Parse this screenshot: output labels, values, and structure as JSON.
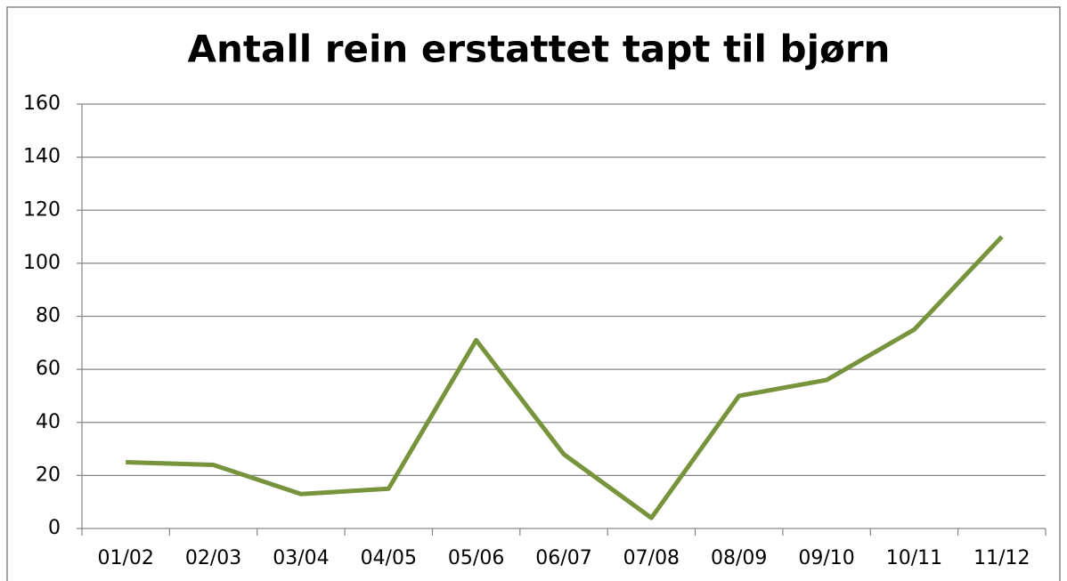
{
  "chart_data": {
    "type": "line",
    "title": "Antall rein erstattet tapt til bjørn",
    "categories": [
      "01/02",
      "02/03",
      "03/04",
      "04/05",
      "05/06",
      "06/07",
      "07/08",
      "08/09",
      "09/10",
      "10/11",
      "11/12"
    ],
    "values": [
      25,
      24,
      13,
      15,
      71,
      28,
      4,
      50,
      56,
      75,
      110
    ],
    "color": "#77933c",
    "ylim": [
      0,
      160
    ],
    "yticks": [
      0,
      20,
      40,
      60,
      80,
      100,
      120,
      140,
      160
    ],
    "grid": true
  }
}
